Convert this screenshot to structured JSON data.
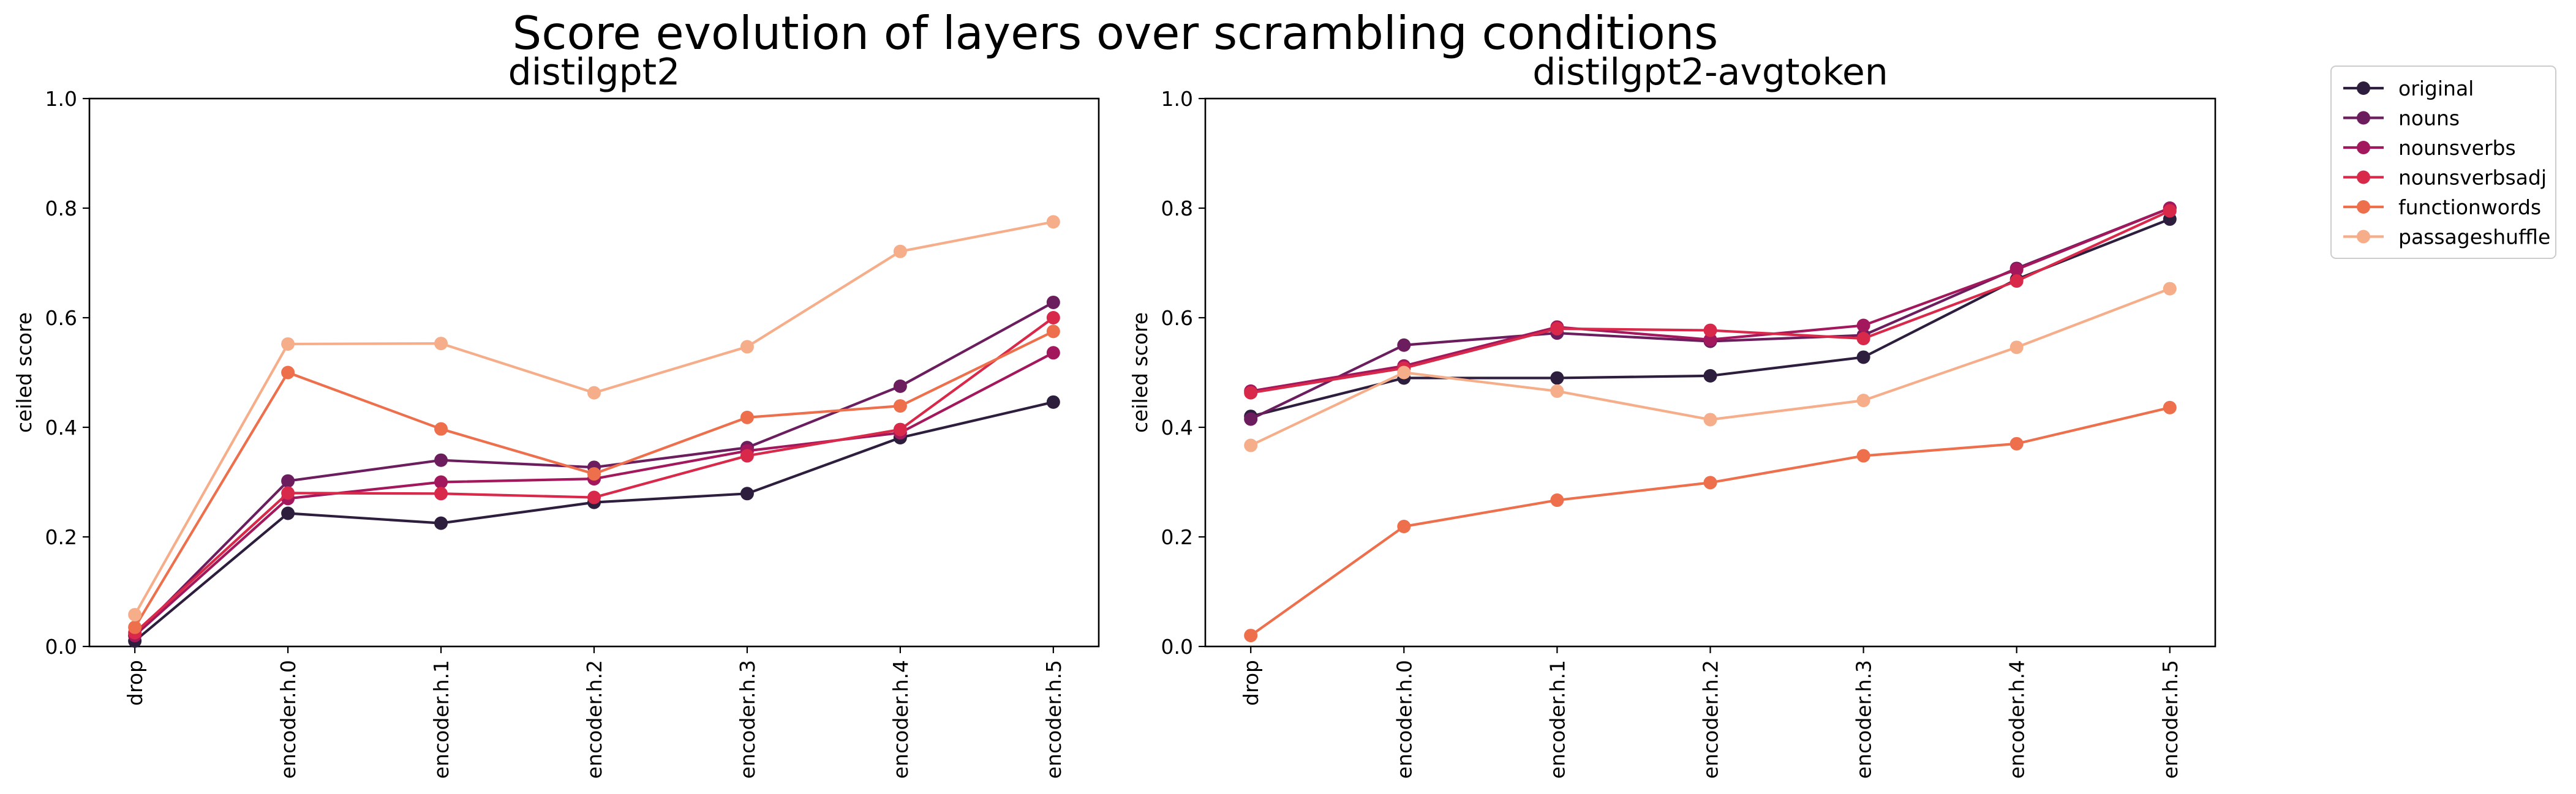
{
  "chart_data": {
    "type": "line",
    "title": "Score evolution of layers over scrambling conditions",
    "categories": [
      "drop",
      "encoder.h.0",
      "encoder.h.1",
      "encoder.h.2",
      "encoder.h.3",
      "encoder.h.4",
      "encoder.h.5"
    ],
    "ylabel": "ceiled score",
    "ylim": [
      0,
      1.0
    ],
    "yticks": [
      "0.0",
      "0.2",
      "0.4",
      "0.6",
      "0.8",
      "1.0"
    ],
    "grid": false,
    "legend_position": "outside-right",
    "colors": {
      "original": "#2d1e3e",
      "nouns": "#6b1d5e",
      "nounsverbs": "#a3185c",
      "nounsverbsadj": "#d9294a",
      "functionwords": "#ee6f4c",
      "passageshuffle": "#f6ae8a"
    },
    "panels": [
      {
        "title": "distilgpt2",
        "series": [
          {
            "name": "original",
            "values": [
              0.01,
              0.243,
              0.225,
              0.263,
              0.279,
              0.381,
              0.446
            ]
          },
          {
            "name": "nouns",
            "values": [
              0.02,
              0.302,
              0.34,
              0.327,
              0.363,
              0.475,
              0.628
            ]
          },
          {
            "name": "nounsverbs",
            "values": [
              0.02,
              0.27,
              0.3,
              0.306,
              0.357,
              0.39,
              0.536
            ]
          },
          {
            "name": "nounsverbsadj",
            "values": [
              0.025,
              0.28,
              0.279,
              0.272,
              0.348,
              0.396,
              0.6
            ]
          },
          {
            "name": "functionwords",
            "values": [
              0.035,
              0.5,
              0.397,
              0.315,
              0.418,
              0.439,
              0.575
            ]
          },
          {
            "name": "passageshuffle",
            "values": [
              0.058,
              0.552,
              0.553,
              0.463,
              0.547,
              0.721,
              0.775
            ]
          }
        ]
      },
      {
        "title": "distilgpt2-avgtoken",
        "series": [
          {
            "name": "original",
            "values": [
              0.42,
              0.49,
              0.49,
              0.494,
              0.528,
              0.67,
              0.78
            ]
          },
          {
            "name": "nouns",
            "values": [
              0.415,
              0.55,
              0.572,
              0.557,
              0.568,
              0.69,
              0.8
            ]
          },
          {
            "name": "nounsverbs",
            "values": [
              0.466,
              0.512,
              0.583,
              0.56,
              0.586,
              0.688,
              0.8
            ]
          },
          {
            "name": "nounsverbsadj",
            "values": [
              0.463,
              0.508,
              0.58,
              0.577,
              0.562,
              0.667,
              0.795
            ]
          },
          {
            "name": "functionwords",
            "values": [
              0.02,
              0.219,
              0.267,
              0.299,
              0.348,
              0.37,
              0.436
            ]
          },
          {
            "name": "passageshuffle",
            "values": [
              0.367,
              0.5,
              0.466,
              0.414,
              0.449,
              0.546,
              0.653
            ]
          }
        ]
      }
    ]
  }
}
